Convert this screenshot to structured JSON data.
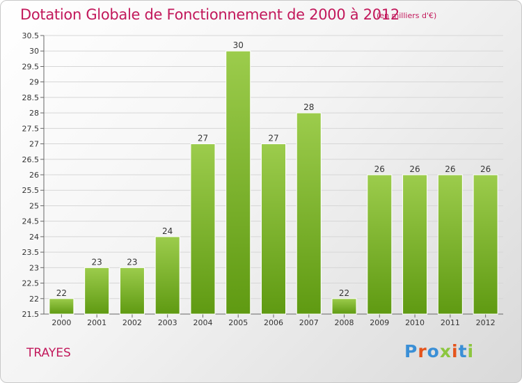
{
  "header": {
    "title": "Dotation Globale de Fonctionnement de 2000 à 2012",
    "unit": "(en milliers d'€)"
  },
  "footer": {
    "commune": "TRAYES",
    "logo": "Proxiti"
  },
  "colors": {
    "title": "#c2185b",
    "bar_light": "#9ccc4c",
    "bar_dark": "#5f9a12",
    "logo_letters": [
      "#3a8fd6",
      "#e5541b",
      "#3a8fd6",
      "#8cc63f",
      "#e5541b",
      "#3a8fd6",
      "#8cc63f"
    ]
  },
  "chart_data": {
    "type": "bar",
    "categories": [
      "2000",
      "2001",
      "2002",
      "2003",
      "2004",
      "2005",
      "2006",
      "2007",
      "2008",
      "2009",
      "2010",
      "2011",
      "2012"
    ],
    "values": [
      22,
      23,
      23,
      24,
      27,
      30,
      27,
      28,
      22,
      26,
      26,
      26,
      26
    ],
    "data_labels": [
      "22",
      "23",
      "23",
      "24",
      "27",
      "30",
      "27",
      "28",
      "22",
      "26",
      "26",
      "26",
      "26"
    ],
    "ylim": [
      21.5,
      30.5
    ],
    "yticks": [
      "21.5",
      "22",
      "22.5",
      "23",
      "23.5",
      "24",
      "24.5",
      "25",
      "25.5",
      "26",
      "26.5",
      "27",
      "27.5",
      "28",
      "28.5",
      "29",
      "29.5",
      "30",
      "30.5"
    ],
    "grid": true,
    "xlabel": "",
    "ylabel": ""
  }
}
